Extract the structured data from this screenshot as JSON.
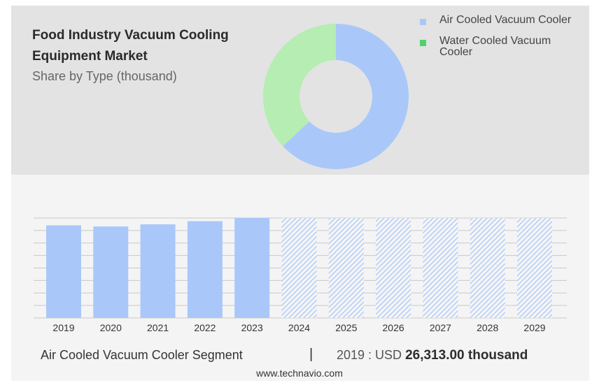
{
  "header": {
    "title": "Food Industry Vacuum Cooling Equipment Market",
    "subtitle": "Share by Type (thousand)"
  },
  "colors": {
    "air_cooled": "#a9c8f9",
    "water_cooled": "#b5edb2",
    "legend_water_swatch": "#4cd36a",
    "hatch": "#a9c8f9"
  },
  "chart_data": [
    {
      "type": "pie",
      "variant": "donut",
      "title": "",
      "slices": [
        {
          "label": "Air Cooled Vacuum Cooler",
          "value": 63
        },
        {
          "label": "Water Cooled Vacuum Cooler",
          "value": 37
        }
      ],
      "legend": {
        "position": "right"
      }
    },
    {
      "type": "bar",
      "categories": [
        "2019",
        "2020",
        "2021",
        "2022",
        "2023",
        "2024",
        "2025",
        "2026",
        "2027",
        "2028",
        "2029"
      ],
      "values": [
        26313,
        26000,
        26600,
        27500,
        28400,
        28400,
        28400,
        28400,
        28400,
        28400,
        28400
      ],
      "forecast_from_index": 5,
      "ylim": [
        0,
        28400
      ],
      "grid": true,
      "xlabel": "",
      "ylabel": ""
    }
  ],
  "footer": {
    "segment": "Air Cooled Vacuum Cooler Segment",
    "separator": "|",
    "year_label": "2019 : USD",
    "amount": "26,313.00 thousand",
    "source": "www.technavio.com"
  }
}
